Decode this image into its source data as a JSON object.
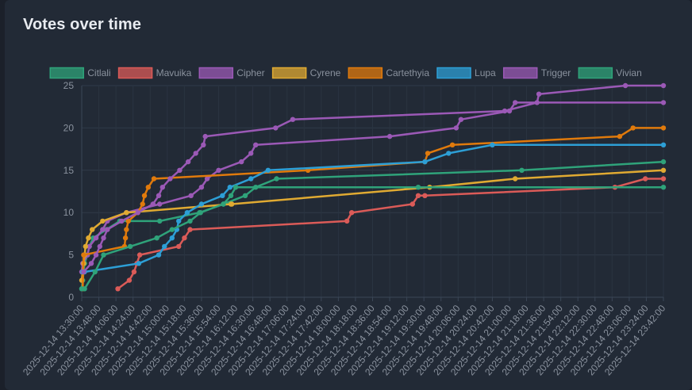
{
  "header": {
    "title": "Votes over time"
  },
  "chart_data": {
    "type": "line",
    "xlabel": "",
    "ylabel": "",
    "ylim": [
      0,
      25
    ],
    "y_ticks": [
      0,
      5,
      10,
      15,
      20,
      25
    ],
    "x_range": [
      "2025-12-14 13:30:00",
      "2025-12-14 23:42:00"
    ],
    "x_tick_labels": [
      "2025-12-14 13:30:00",
      "2025-12-14 13:48:00",
      "2025-12-14 14:06:00",
      "2025-12-14 14:24:00",
      "2025-12-14 14:42:00",
      "2025-12-14 15:00:00",
      "2025-12-14 15:18:00",
      "2025-12-14 15:36:00",
      "2025-12-14 15:54:00",
      "2025-12-14 16:12:00",
      "2025-12-14 16:30:00",
      "2025-12-14 16:48:00",
      "2025-12-14 17:06:00",
      "2025-12-14 17:24:00",
      "2025-12-14 17:42:00",
      "2025-12-14 18:00:00",
      "2025-12-14 18:18:00",
      "2025-12-14 18:36:00",
      "2025-12-14 18:54:00",
      "2025-12-14 19:12:00",
      "2025-12-14 19:30:00",
      "2025-12-14 19:48:00",
      "2025-12-14 20:06:00",
      "2025-12-14 20:24:00",
      "2025-12-14 20:42:00",
      "2025-12-14 21:00:00",
      "2025-12-14 21:18:00",
      "2025-12-14 21:36:00",
      "2025-12-14 21:54:00",
      "2025-12-14 22:12:00",
      "2025-12-14 22:30:00",
      "2025-12-14 22:48:00",
      "2025-12-14 23:06:00",
      "2025-12-14 23:24:00",
      "2025-12-14 23:42:00"
    ],
    "grid": true,
    "legend_position": "top",
    "series": [
      {
        "name": "Citlali",
        "color": "#2fa37a",
        "points": [
          [
            "2025-12-14 13:30:00",
            1
          ],
          [
            "2025-12-14 13:31:00",
            2
          ],
          [
            "2025-12-14 13:32:00",
            3
          ],
          [
            "2025-12-14 13:33:00",
            4
          ],
          [
            "2025-12-14 13:36:00",
            5
          ],
          [
            "2025-12-14 13:38:00",
            6
          ],
          [
            "2025-12-14 13:42:00",
            7
          ],
          [
            "2025-12-14 13:56:00",
            8
          ],
          [
            "2025-12-14 14:10:00",
            9
          ],
          [
            "2025-12-14 14:52:00",
            9
          ],
          [
            "2025-12-14 15:34:00",
            10
          ],
          [
            "2025-12-14 15:59:00",
            11
          ],
          [
            "2025-12-14 16:22:00",
            12
          ],
          [
            "2025-12-14 16:33:00",
            13
          ],
          [
            "2025-12-14 16:55:00",
            14
          ],
          [
            "2025-12-14 21:13:00",
            15
          ],
          [
            "2025-12-14 23:42:00",
            16
          ]
        ]
      },
      {
        "name": "Mavuika",
        "color": "#db5b58",
        "points": [
          [
            "2025-12-14 14:08:00",
            1
          ],
          [
            "2025-12-14 14:20:00",
            2
          ],
          [
            "2025-12-14 14:25:00",
            3
          ],
          [
            "2025-12-14 14:28:00",
            4
          ],
          [
            "2025-12-14 14:31:00",
            5
          ],
          [
            "2025-12-14 15:12:00",
            6
          ],
          [
            "2025-12-14 15:18:00",
            7
          ],
          [
            "2025-12-14 15:24:00",
            8
          ],
          [
            "2025-12-14 18:09:00",
            9
          ],
          [
            "2025-12-14 18:14:00",
            10
          ],
          [
            "2025-12-14 19:18:00",
            11
          ],
          [
            "2025-12-14 19:24:00",
            12
          ],
          [
            "2025-12-14 19:31:00",
            12
          ],
          [
            "2025-12-14 22:51:00",
            13
          ],
          [
            "2025-12-14 23:23:00",
            14
          ],
          [
            "2025-12-14 23:42:00",
            14
          ]
        ]
      },
      {
        "name": "Cipher",
        "color": "#9b59b6",
        "points": [
          [
            "2025-12-14 13:30:00",
            3
          ],
          [
            "2025-12-14 13:31:00",
            4
          ],
          [
            "2025-12-14 13:36:00",
            5
          ],
          [
            "2025-12-14 13:38:00",
            6
          ],
          [
            "2025-12-14 13:45:00",
            7
          ],
          [
            "2025-12-14 13:52:00",
            8
          ],
          [
            "2025-12-14 13:57:00",
            9
          ],
          [
            "2025-12-14 14:17:00",
            10
          ],
          [
            "2025-12-14 14:52:00",
            11
          ],
          [
            "2025-12-14 15:25:00",
            12
          ],
          [
            "2025-12-14 15:36:00",
            13
          ],
          [
            "2025-12-14 15:42:00",
            14
          ],
          [
            "2025-12-14 15:54:00",
            15
          ],
          [
            "2025-12-14 16:18:00",
            16
          ],
          [
            "2025-12-14 16:28:00",
            17
          ],
          [
            "2025-12-14 16:33:00",
            18
          ],
          [
            "2025-12-14 18:54:00",
            19
          ],
          [
            "2025-12-14 20:04:00",
            20
          ],
          [
            "2025-12-14 20:09:00",
            21
          ],
          [
            "2025-12-14 21:00:00",
            22
          ],
          [
            "2025-12-14 21:06:00",
            23
          ],
          [
            "2025-12-14 23:42:00",
            23
          ]
        ]
      },
      {
        "name": "Cyrene",
        "color": "#e0aa32",
        "points": [
          [
            "2025-12-14 13:30:00",
            2
          ],
          [
            "2025-12-14 13:31:00",
            3
          ],
          [
            "2025-12-14 13:32:00",
            4
          ],
          [
            "2025-12-14 13:33:00",
            5
          ],
          [
            "2025-12-14 13:34:00",
            6
          ],
          [
            "2025-12-14 13:37:00",
            7
          ],
          [
            "2025-12-14 13:41:00",
            8
          ],
          [
            "2025-12-14 13:52:00",
            9
          ],
          [
            "2025-12-14 14:17:00",
            10
          ],
          [
            "2025-12-14 16:07:00",
            11
          ],
          [
            "2025-12-14 16:08:00",
            11
          ],
          [
            "2025-12-14 19:36:00",
            13
          ],
          [
            "2025-12-14 21:06:00",
            14
          ],
          [
            "2025-12-14 23:42:00",
            15
          ]
        ]
      },
      {
        "name": "Cartethyia",
        "color": "#e07a0c",
        "points": [
          [
            "2025-12-14 13:31:00",
            1
          ],
          [
            "2025-12-14 13:32:00",
            5
          ],
          [
            "2025-12-14 14:15:00",
            6
          ],
          [
            "2025-12-14 14:16:00",
            7
          ],
          [
            "2025-12-14 14:17:00",
            8
          ],
          [
            "2025-12-14 14:19:00",
            9
          ],
          [
            "2025-12-14 14:29:00",
            10
          ],
          [
            "2025-12-14 14:34:00",
            11
          ],
          [
            "2025-12-14 14:36:00",
            12
          ],
          [
            "2025-12-14 14:40:00",
            13
          ],
          [
            "2025-12-14 14:46:00",
            14
          ],
          [
            "2025-12-14 17:28:00",
            15
          ],
          [
            "2025-12-14 19:31:00",
            16
          ],
          [
            "2025-12-14 19:34:00",
            17
          ],
          [
            "2025-12-14 20:00:00",
            18
          ],
          [
            "2025-12-14 22:56:00",
            19
          ],
          [
            "2025-12-14 23:10:00",
            20
          ],
          [
            "2025-12-14 23:42:00",
            20
          ]
        ]
      },
      {
        "name": "Lupa",
        "color": "#2d9fd6",
        "points": [
          [
            "2025-12-14 13:31:00",
            3
          ],
          [
            "2025-12-14 13:33:00",
            3
          ],
          [
            "2025-12-14 14:30:00",
            4
          ],
          [
            "2025-12-14 14:51:00",
            5
          ],
          [
            "2025-12-14 14:57:00",
            6
          ],
          [
            "2025-12-14 15:05:00",
            7
          ],
          [
            "2025-12-14 15:10:00",
            8
          ],
          [
            "2025-12-14 15:12:00",
            9
          ],
          [
            "2025-12-14 15:21:00",
            10
          ],
          [
            "2025-12-14 15:36:00",
            11
          ],
          [
            "2025-12-14 15:58:00",
            12
          ],
          [
            "2025-12-14 16:06:00",
            13
          ],
          [
            "2025-12-14 16:28:00",
            14
          ],
          [
            "2025-12-14 16:46:00",
            15
          ],
          [
            "2025-12-14 19:31:00",
            16
          ],
          [
            "2025-12-14 19:56:00",
            17
          ],
          [
            "2025-12-14 20:42:00",
            18
          ],
          [
            "2025-12-14 23:42:00",
            18
          ]
        ]
      },
      {
        "name": "Trigger",
        "color": "#9b59b6",
        "points": [
          [
            "2025-12-14 13:32:00",
            3
          ],
          [
            "2025-12-14 13:40:00",
            4
          ],
          [
            "2025-12-14 13:45:00",
            5
          ],
          [
            "2025-12-14 13:49:00",
            6
          ],
          [
            "2025-12-14 13:53:00",
            7
          ],
          [
            "2025-12-14 13:57:00",
            8
          ],
          [
            "2025-12-14 14:12:00",
            9
          ],
          [
            "2025-12-14 14:29:00",
            10
          ],
          [
            "2025-12-14 14:45:00",
            11
          ],
          [
            "2025-12-14 14:51:00",
            12
          ],
          [
            "2025-12-14 14:55:00",
            13
          ],
          [
            "2025-12-14 15:03:00",
            14
          ],
          [
            "2025-12-14 15:13:00",
            15
          ],
          [
            "2025-12-14 15:22:00",
            16
          ],
          [
            "2025-12-14 15:30:00",
            17
          ],
          [
            "2025-12-14 15:38:00",
            18
          ],
          [
            "2025-12-14 15:40:00",
            19
          ],
          [
            "2025-12-14 16:54:00",
            20
          ],
          [
            "2025-12-14 17:12:00",
            21
          ],
          [
            "2025-12-14 20:55:00",
            22
          ],
          [
            "2025-12-14 21:29:00",
            23
          ],
          [
            "2025-12-14 21:31:00",
            24
          ],
          [
            "2025-12-14 23:02:00",
            25
          ],
          [
            "2025-12-14 23:42:00",
            25
          ]
        ]
      },
      {
        "name": "Vivian",
        "color": "#2fa37a",
        "points": [
          [
            "2025-12-14 13:30:00",
            1
          ],
          [
            "2025-12-14 13:33:00",
            1
          ],
          [
            "2025-12-14 13:44:00",
            3
          ],
          [
            "2025-12-14 13:53:00",
            5
          ],
          [
            "2025-12-14 14:21:00",
            6
          ],
          [
            "2025-12-14 14:49:00",
            7
          ],
          [
            "2025-12-14 15:05:00",
            8
          ],
          [
            "2025-12-14 15:24:00",
            9
          ],
          [
            "2025-12-14 15:35:00",
            10
          ],
          [
            "2025-12-14 15:59:00",
            11
          ],
          [
            "2025-12-14 16:07:00",
            12
          ],
          [
            "2025-12-14 16:12:00",
            13
          ],
          [
            "2025-12-14 19:24:00",
            13
          ],
          [
            "2025-12-14 23:42:00",
            13
          ]
        ]
      }
    ]
  }
}
